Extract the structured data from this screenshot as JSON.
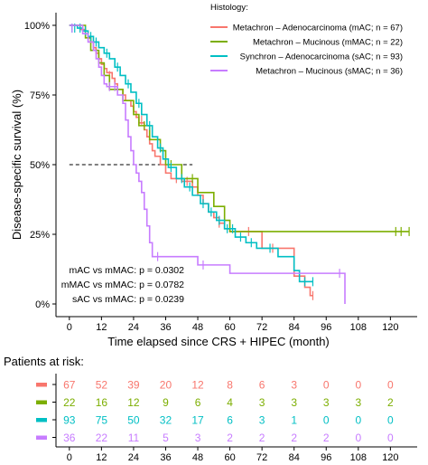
{
  "chart_data": {
    "type": "line",
    "xlabel": "Time elapsed since CRS + HIPEC (month)",
    "ylabel": "Disease-specific survival (%)",
    "xlim": [
      -5,
      130
    ],
    "ylim": [
      0,
      1
    ],
    "x_ticks": [
      0,
      12,
      24,
      36,
      48,
      60,
      72,
      84,
      96,
      108,
      120
    ],
    "x_tick_labels": [
      "0",
      "12",
      "24",
      "36",
      "48",
      "60",
      "72",
      "84",
      "96",
      "108",
      "120"
    ],
    "y_ticks": [
      0,
      0.25,
      0.5,
      0.75,
      1
    ],
    "y_tick_labels": [
      "0%",
      "25%",
      "50%",
      "75%",
      "100%"
    ],
    "median_line": {
      "y": 0.5,
      "x_end": 46
    },
    "legend": {
      "title": "Histology:",
      "position": "top-right"
    },
    "series": [
      {
        "name": "Metachron – Adenocarcinoma (mAC; n = 67)",
        "color": "#F8766D",
        "steps": [
          [
            0,
            1
          ],
          [
            4,
            0.985
          ],
          [
            6,
            0.97
          ],
          [
            7,
            0.955
          ],
          [
            8,
            0.94
          ],
          [
            9,
            0.92
          ],
          [
            10,
            0.9
          ],
          [
            11,
            0.88
          ],
          [
            12,
            0.86
          ],
          [
            13,
            0.845
          ],
          [
            14,
            0.83
          ],
          [
            16,
            0.81
          ],
          [
            17,
            0.79
          ],
          [
            18,
            0.77
          ],
          [
            20,
            0.75
          ],
          [
            21,
            0.73
          ],
          [
            23,
            0.71
          ],
          [
            24,
            0.69
          ],
          [
            25,
            0.67
          ],
          [
            26,
            0.65
          ],
          [
            28,
            0.625
          ],
          [
            29,
            0.6
          ],
          [
            30,
            0.575
          ],
          [
            31,
            0.55
          ],
          [
            32,
            0.53
          ],
          [
            34,
            0.5
          ],
          [
            36,
            0.47
          ],
          [
            38,
            0.45
          ],
          [
            42,
            0.44
          ],
          [
            46,
            0.42
          ],
          [
            48,
            0.39
          ],
          [
            50,
            0.36
          ],
          [
            52,
            0.33
          ],
          [
            54,
            0.31
          ],
          [
            56,
            0.29
          ],
          [
            58,
            0.27
          ],
          [
            60,
            0.26
          ],
          [
            72,
            0.2
          ],
          [
            84,
            0.1
          ],
          [
            88,
            0.06
          ],
          [
            90,
            0.03
          ],
          [
            91,
            0.03
          ]
        ],
        "censors": [
          [
            15,
            0.82
          ],
          [
            27,
            0.66
          ],
          [
            40,
            0.45
          ],
          [
            44,
            0.44
          ],
          [
            56,
            0.29
          ],
          [
            67,
            0.26
          ],
          [
            76,
            0.2
          ],
          [
            86,
            0.1
          ],
          [
            91,
            0.03
          ]
        ]
      },
      {
        "name": "Metachron – Mucinous (mMAC; n = 22)",
        "color": "#7CAE00",
        "steps": [
          [
            0,
            1
          ],
          [
            6,
            0.955
          ],
          [
            8,
            0.91
          ],
          [
            11,
            0.865
          ],
          [
            13,
            0.82
          ],
          [
            15,
            0.77
          ],
          [
            20,
            0.73
          ],
          [
            24,
            0.68
          ],
          [
            26,
            0.64
          ],
          [
            30,
            0.59
          ],
          [
            34,
            0.55
          ],
          [
            36,
            0.5
          ],
          [
            42,
            0.45
          ],
          [
            48,
            0.4
          ],
          [
            54,
            0.35
          ],
          [
            58,
            0.3
          ],
          [
            60,
            0.26
          ],
          [
            127,
            0.26
          ]
        ],
        "censors": [
          [
            28,
            0.64
          ],
          [
            38,
            0.5
          ],
          [
            46,
            0.45
          ],
          [
            122,
            0.26
          ],
          [
            124,
            0.26
          ],
          [
            127,
            0.26
          ]
        ]
      },
      {
        "name": "Synchron – Adenocarcinoma (sAC; n = 93)",
        "color": "#00BFC4",
        "steps": [
          [
            0,
            1
          ],
          [
            3,
            0.99
          ],
          [
            5,
            0.98
          ],
          [
            7,
            0.96
          ],
          [
            9,
            0.94
          ],
          [
            11,
            0.92
          ],
          [
            13,
            0.9
          ],
          [
            15,
            0.88
          ],
          [
            17,
            0.85
          ],
          [
            19,
            0.82
          ],
          [
            21,
            0.79
          ],
          [
            23,
            0.76
          ],
          [
            25,
            0.72
          ],
          [
            27,
            0.68
          ],
          [
            29,
            0.64
          ],
          [
            31,
            0.6
          ],
          [
            33,
            0.56
          ],
          [
            35,
            0.52
          ],
          [
            37,
            0.49
          ],
          [
            40,
            0.45
          ],
          [
            43,
            0.42
          ],
          [
            46,
            0.39
          ],
          [
            49,
            0.36
          ],
          [
            52,
            0.33
          ],
          [
            55,
            0.3
          ],
          [
            58,
            0.27
          ],
          [
            62,
            0.24
          ],
          [
            66,
            0.22
          ],
          [
            70,
            0.2
          ],
          [
            78,
            0.17
          ],
          [
            84,
            0.12
          ],
          [
            86,
            0.08
          ],
          [
            91,
            0.08
          ]
        ],
        "censors": [
          [
            1,
            0.99
          ],
          [
            2,
            0.99
          ],
          [
            4,
            0.99
          ],
          [
            6,
            0.98
          ],
          [
            8,
            0.96
          ],
          [
            10,
            0.94
          ],
          [
            14,
            0.9
          ],
          [
            18,
            0.85
          ],
          [
            22,
            0.79
          ],
          [
            26,
            0.72
          ],
          [
            30,
            0.64
          ],
          [
            34,
            0.56
          ],
          [
            38,
            0.49
          ],
          [
            42,
            0.45
          ],
          [
            45,
            0.42
          ],
          [
            50,
            0.36
          ],
          [
            53,
            0.33
          ],
          [
            56,
            0.3
          ],
          [
            59,
            0.27
          ],
          [
            61,
            0.27
          ],
          [
            64,
            0.24
          ],
          [
            68,
            0.22
          ],
          [
            75,
            0.2
          ],
          [
            88,
            0.08
          ],
          [
            91,
            0.08
          ]
        ]
      },
      {
        "name": "Metachron – Mucinous (sMAC; n = 36)",
        "color": "#C77CFF",
        "steps": [
          [
            0,
            1
          ],
          [
            5,
            0.97
          ],
          [
            7,
            0.94
          ],
          [
            9,
            0.91
          ],
          [
            10,
            0.88
          ],
          [
            11,
            0.85
          ],
          [
            12,
            0.82
          ],
          [
            13,
            0.79
          ],
          [
            14,
            0.78
          ],
          [
            18,
            0.75
          ],
          [
            20,
            0.72
          ],
          [
            21,
            0.66
          ],
          [
            22,
            0.6
          ],
          [
            23,
            0.55
          ],
          [
            24,
            0.5
          ],
          [
            25,
            0.47
          ],
          [
            26,
            0.44
          ],
          [
            27,
            0.4
          ],
          [
            28,
            0.34
          ],
          [
            29,
            0.28
          ],
          [
            30,
            0.22
          ],
          [
            31,
            0.17
          ],
          [
            36,
            0.17
          ],
          [
            48,
            0.14
          ],
          [
            60,
            0.11
          ],
          [
            100,
            0.11
          ],
          [
            103,
            0
          ],
          [
            103,
            0
          ]
        ],
        "censors": [
          [
            1,
            0.99
          ],
          [
            15,
            0.78
          ],
          [
            17,
            0.78
          ],
          [
            33,
            0.17
          ],
          [
            50,
            0.14
          ],
          [
            101,
            0.11
          ]
        ]
      }
    ],
    "annotations": [
      {
        "label": "mAC vs mMAC: p = 0.0302"
      },
      {
        "label": "mMAC vs mMAC: p = 0.0782"
      },
      {
        "label": "sAC vs mMAC: p = 0.0239"
      }
    ],
    "risk_table": {
      "title": "Patients at risk:",
      "times": [
        0,
        12,
        24,
        36,
        48,
        60,
        72,
        84,
        96,
        108,
        120
      ],
      "rows": [
        {
          "color": "#F8766D",
          "values": [
            67,
            52,
            39,
            20,
            12,
            8,
            6,
            3,
            0,
            0,
            0
          ]
        },
        {
          "color": "#7CAE00",
          "values": [
            22,
            16,
            12,
            9,
            6,
            4,
            3,
            3,
            3,
            3,
            2
          ]
        },
        {
          "color": "#00BFC4",
          "values": [
            93,
            75,
            50,
            32,
            17,
            6,
            3,
            1,
            0,
            0,
            0
          ]
        },
        {
          "color": "#C77CFF",
          "values": [
            36,
            22,
            11,
            5,
            3,
            2,
            2,
            2,
            2,
            0,
            0
          ]
        }
      ]
    }
  }
}
